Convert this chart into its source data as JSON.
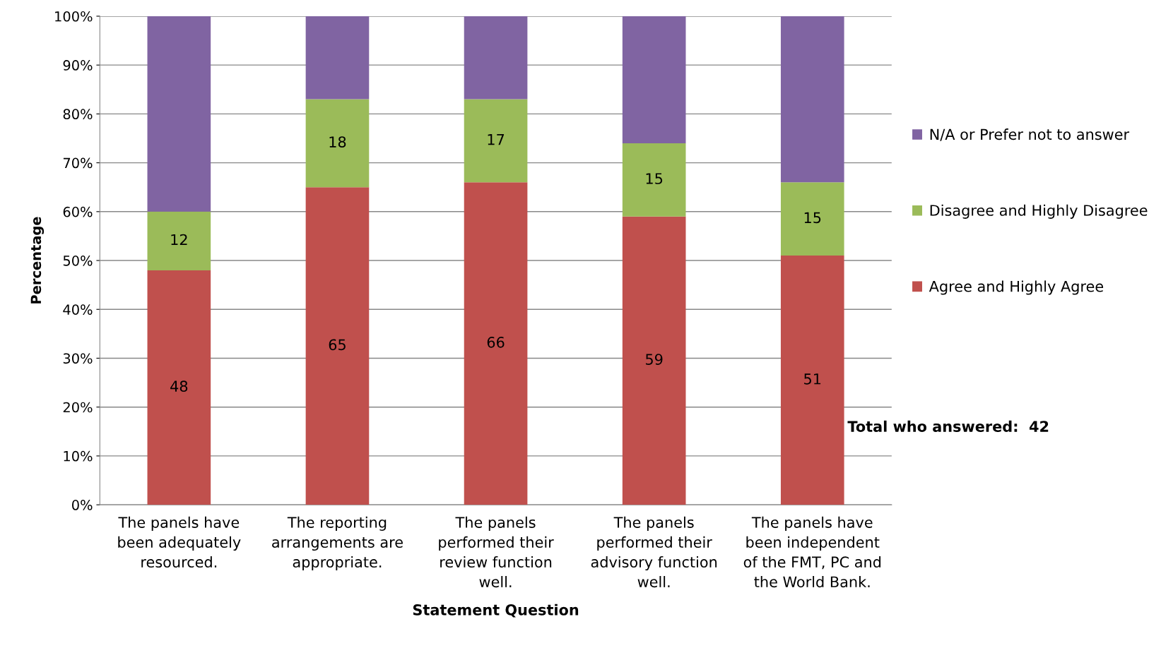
{
  "chart_data": {
    "type": "bar",
    "stacked": true,
    "xlabel": "Statement Question",
    "ylabel": "Percentage",
    "categories": [
      "The panels have\nbeen adequately\nresourced.",
      "The reporting\narrangements are\nappropriate.",
      "The panels\nperformed their\nreview function\nwell.",
      "The panels\nperformed their\nadvisory function\nwell.",
      "The panels have\nbeen independent\nof the FMT, PC and\nthe World Bank."
    ],
    "series": [
      {
        "name": "Agree and Highly Agree",
        "color": "#c0504d",
        "values": [
          48,
          65,
          66,
          59,
          51
        ],
        "value_labels": [
          "48",
          "65",
          "66",
          "59",
          "51"
        ]
      },
      {
        "name": "Disagree and Highly Disagree",
        "color": "#9bbb59",
        "values": [
          12,
          18,
          17,
          15,
          15
        ],
        "value_labels": [
          "12",
          "18",
          "17",
          "15",
          "15"
        ]
      },
      {
        "name": "N/A or Prefer not to answer",
        "color": "#8064a2",
        "values": [
          40,
          17,
          17,
          26,
          34
        ],
        "value_labels": [
          null,
          null,
          null,
          null,
          null
        ]
      }
    ],
    "ylim": [
      0,
      100
    ],
    "yticks": [
      {
        "value": 0,
        "label": "0%"
      },
      {
        "value": 10,
        "label": "10%"
      },
      {
        "value": 20,
        "label": "20%"
      },
      {
        "value": 30,
        "label": "30%"
      },
      {
        "value": 40,
        "label": "40%"
      },
      {
        "value": 50,
        "label": "50%"
      },
      {
        "value": 60,
        "label": "60%"
      },
      {
        "value": 70,
        "label": "70%"
      },
      {
        "value": 80,
        "label": "80%"
      },
      {
        "value": 90,
        "label": "90%"
      },
      {
        "value": 100,
        "label": "100%"
      }
    ],
    "grid": "y",
    "legend": "right",
    "annotations": [
      "Total who answered:  42"
    ]
  }
}
